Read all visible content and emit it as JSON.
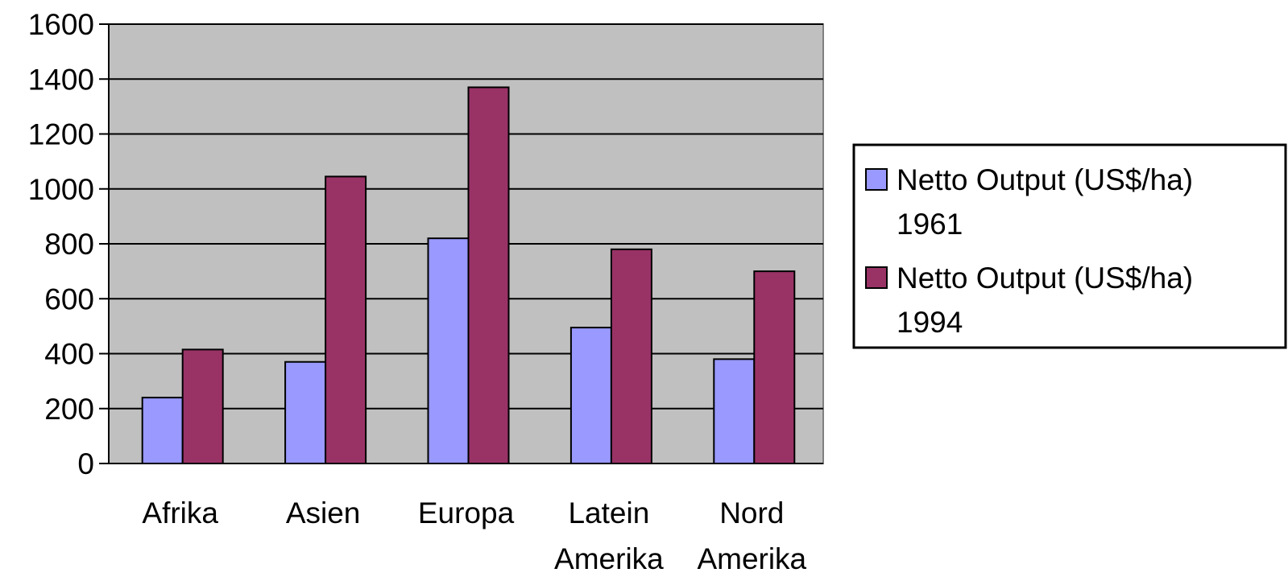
{
  "chart_data": {
    "type": "bar",
    "categories": [
      [
        "Afrika"
      ],
      [
        "Asien"
      ],
      [
        "Europa"
      ],
      [
        "Latein",
        "Amerika"
      ],
      [
        "Nord",
        "Amerika"
      ]
    ],
    "series": [
      {
        "name": [
          "Netto Output (US$/ha)",
          "1961"
        ],
        "color": "#9999ff",
        "values": [
          240,
          370,
          820,
          495,
          380
        ]
      },
      {
        "name": [
          "Netto Output (US$/ha)",
          "1994"
        ],
        "color": "#993366",
        "values": [
          415,
          1045,
          1370,
          780,
          700
        ]
      }
    ],
    "title": "",
    "xlabel": "",
    "ylabel": "",
    "ylim": [
      0,
      1600
    ],
    "yticks": [
      "0",
      "200",
      "400",
      "600",
      "800",
      "1000",
      "1200",
      "1400",
      "1600"
    ],
    "grid": true,
    "plot_background": "#c0c0c0",
    "legend_position": "right"
  }
}
